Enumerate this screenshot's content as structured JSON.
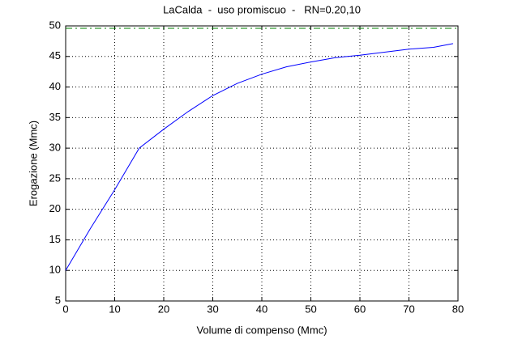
{
  "chart_data": {
    "type": "line",
    "title": "LaCalda  -  uso promiscuo  -   RN=0.20,10",
    "x_label": "Volume di compenso (Mmc)",
    "y_label": "Erogazione (Mmc)",
    "xlim": [
      0,
      80
    ],
    "xticks": [
      0,
      10,
      20,
      30,
      40,
      50,
      60,
      70,
      80
    ],
    "ylim": [
      5,
      50
    ],
    "yticks": [
      5,
      10,
      15,
      20,
      25,
      30,
      35,
      40,
      45,
      50
    ],
    "grid": true,
    "series": [
      {
        "color": "#0000ff",
        "dash": false,
        "x": [
          0,
          5,
          10,
          15,
          20,
          25,
          30,
          35,
          40,
          45,
          50,
          55,
          60,
          65,
          70,
          75,
          79
        ],
        "values": [
          10,
          16.8,
          23.2,
          30,
          33.1,
          36,
          38.6,
          40.6,
          42.1,
          43.3,
          44.1,
          44.8,
          45.2,
          45.7,
          46.2,
          46.5,
          47.1
        ]
      },
      {
        "color": "#008000",
        "dash": true,
        "x": [
          0,
          80
        ],
        "values": [
          49.6,
          49.6
        ]
      }
    ]
  }
}
